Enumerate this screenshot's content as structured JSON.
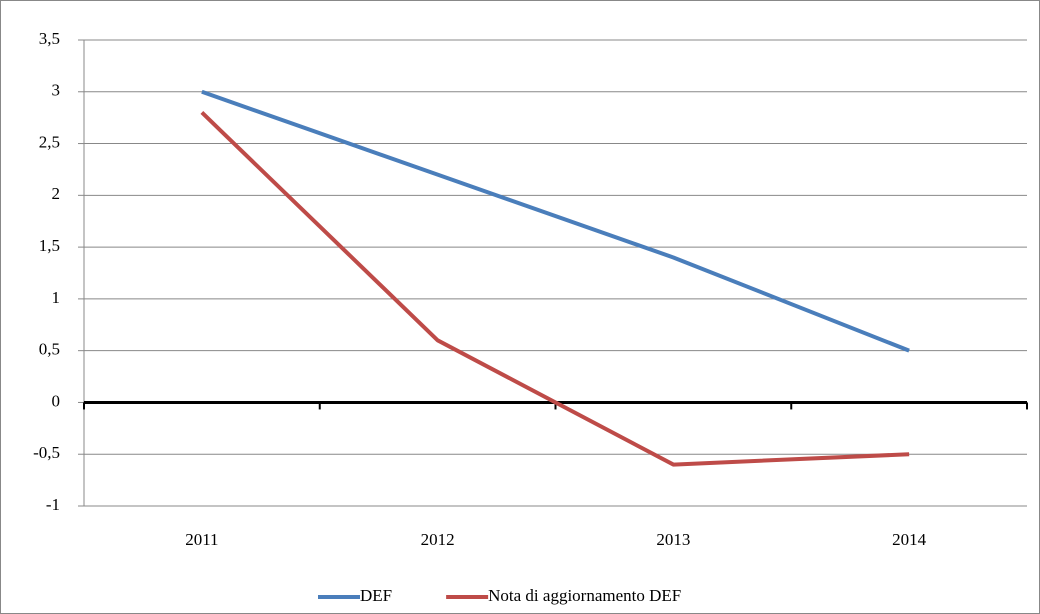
{
  "chart_data": {
    "type": "line",
    "categories": [
      "2011",
      "2012",
      "2013",
      "2014"
    ],
    "series": [
      {
        "name": "DEF",
        "color": "#4a7ebb",
        "values": [
          3,
          2.2,
          1.4,
          0.5
        ]
      },
      {
        "name": "Nota di aggiornamento DEF",
        "color": "#be4b48",
        "values": [
          2.8,
          0.6,
          -0.6,
          -0.5
        ]
      }
    ],
    "ylim": [
      -1,
      3.5
    ],
    "yticks": [
      {
        "value": -1,
        "label": "-1"
      },
      {
        "value": -0.5,
        "label": "-0,5"
      },
      0,
      {
        "value": 0.5,
        "label": "0,5"
      },
      1,
      {
        "value": 1.5,
        "label": "1,5"
      },
      2,
      {
        "value": 2.5,
        "label": "2,5"
      },
      3,
      {
        "value": 3.5,
        "label": "3,5"
      }
    ],
    "grid": true,
    "legend": "bottom"
  }
}
